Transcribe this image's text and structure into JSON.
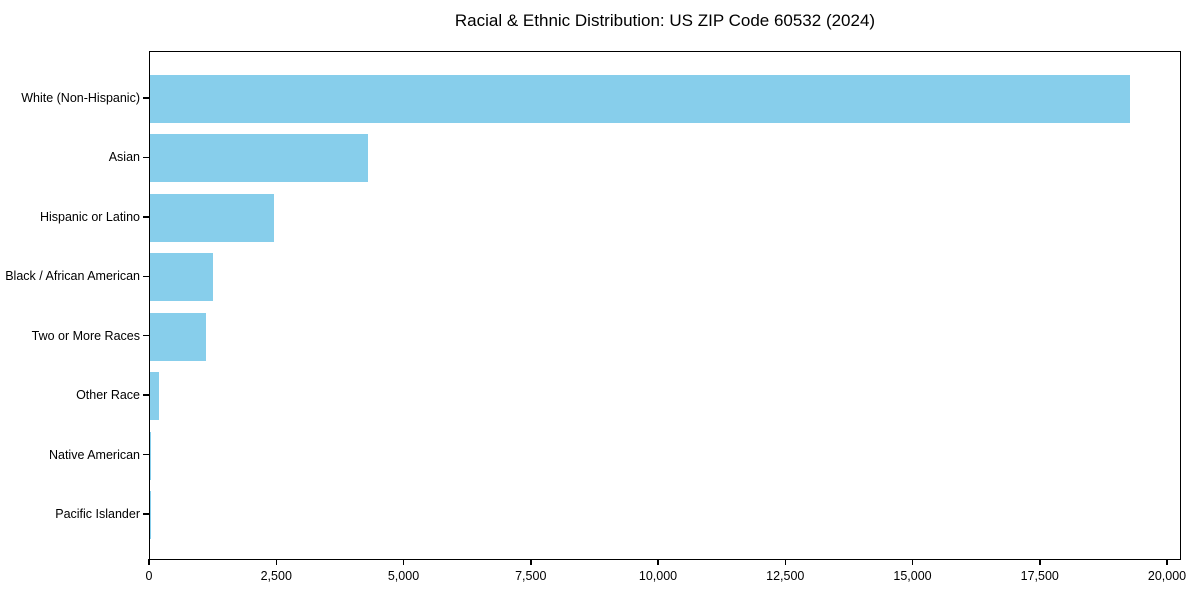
{
  "chart_data": {
    "type": "bar",
    "orientation": "horizontal",
    "title": "Racial & Ethnic Distribution: US ZIP Code 60532 (2024)",
    "categories": [
      "White (Non-Hispanic)",
      "Asian",
      "Hispanic or Latino",
      "Black / African American",
      "Two or More Races",
      "Other Race",
      "Native American",
      "Pacific Islander"
    ],
    "values": [
      19250,
      4280,
      2440,
      1240,
      1100,
      180,
      20,
      5
    ],
    "xlabel": "",
    "ylabel": "",
    "xlim": [
      0,
      20275
    ],
    "xticks": [
      0,
      2500,
      5000,
      7500,
      10000,
      12500,
      15000,
      17500,
      20000
    ],
    "xtick_labels": [
      "0",
      "2,500",
      "5,000",
      "7,500",
      "10,000",
      "12,500",
      "15,000",
      "17,500",
      "20,000"
    ],
    "grid": false,
    "legend": false,
    "bar_color": "#87CEEB",
    "spine_color": "#000000",
    "background_color": "#ffffff"
  }
}
